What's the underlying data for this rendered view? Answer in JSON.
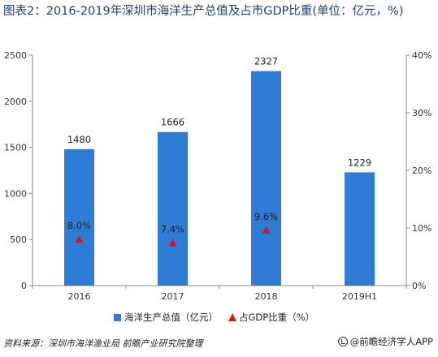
{
  "chart_data": {
    "type": "bar",
    "title": "图表2：2016-2019年深圳市海洋生产总值及占市GDP比重(单位：亿元，%)",
    "categories": [
      "2016",
      "2017",
      "2018",
      "2019H1"
    ],
    "series": [
      {
        "name": "海洋生产总值（亿元）",
        "type": "bar",
        "axis": "left",
        "values": [
          1480,
          1666,
          2327,
          1229
        ],
        "data_labels": [
          "1480",
          "1666",
          "2327",
          "1229"
        ],
        "color": "#2e7cd6"
      },
      {
        "name": "占GDP比重（%）",
        "type": "scatter",
        "axis": "right",
        "marker": "triangle",
        "values": [
          8.0,
          7.4,
          9.6,
          null
        ],
        "data_labels": [
          "8.0%",
          "7.4%",
          "9.6%",
          ""
        ],
        "color": "#d8141c"
      }
    ],
    "ylim_left": [
      0,
      2500
    ],
    "yticks_left": [
      "0",
      "500",
      "1000",
      "1500",
      "2000",
      "2500"
    ],
    "ylim_right": [
      0,
      40
    ],
    "yticks_right": [
      "0%",
      "10%",
      "20%",
      "30%",
      "40%"
    ],
    "grid": false,
    "legend_position": "bottom"
  },
  "footer": {
    "source": "资料来源：深圳市海洋渔业局 前瞻产业研究院整理",
    "brand": "@前瞻经济学人APP"
  }
}
